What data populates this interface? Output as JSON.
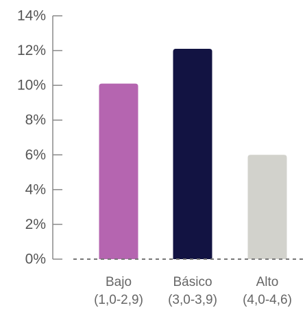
{
  "chart_data": {
    "type": "bar",
    "title": "",
    "xlabel": "",
    "ylabel": "",
    "ylim": [
      0,
      14
    ],
    "yticks": [
      0,
      2,
      4,
      6,
      8,
      10,
      12,
      14
    ],
    "ytick_suffix": "%",
    "categories": [
      {
        "line1": "Bajo",
        "line2": "(1,0-2,9)"
      },
      {
        "line1": "Básico",
        "line2": "(3,0-3,9)"
      },
      {
        "line1": "Alto",
        "line2": "(4,0-4,6)"
      }
    ],
    "values": [
      10.1,
      12.1,
      6.0
    ],
    "colors": [
      "#b565b0",
      "#121342",
      "#d2d2cc"
    ],
    "grid": false,
    "baseline_style": "dashed",
    "axis_color": "#888888"
  }
}
